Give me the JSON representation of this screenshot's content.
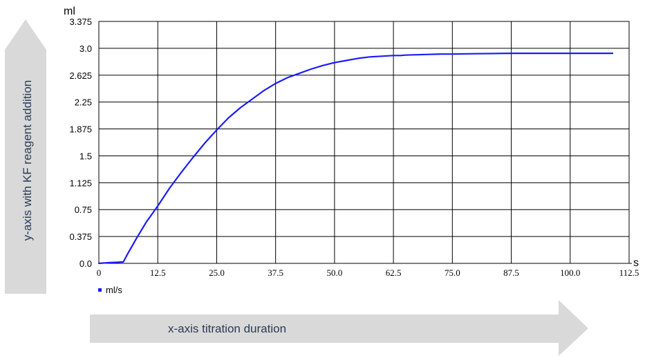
{
  "arrows": {
    "y_label": "y-axis with KF reagent addition",
    "x_label": "x-axis titration duration"
  },
  "chart_data": {
    "type": "line",
    "y_unit": "ml",
    "x_unit": "s",
    "xlim": [
      0,
      112.5
    ],
    "ylim": [
      0,
      3.375
    ],
    "x_ticks": [
      "0",
      "12.5",
      "25.0",
      "37.5",
      "50.0",
      "62.5",
      "75.0",
      "87.5",
      "100.0",
      "112.5"
    ],
    "y_ticks": [
      "0.0",
      "0.375",
      "0.75",
      "1.125",
      "1.5",
      "1.875",
      "2.25",
      "2.625",
      "3.0",
      "3.375"
    ],
    "grid": true,
    "legend": "bottom-left",
    "series": [
      {
        "name": "ml/s",
        "color": "#1a1aff",
        "x": [
          0,
          2,
          4,
          5.2,
          6,
          8,
          10,
          12.5,
          15,
          17.5,
          20,
          22.5,
          25,
          27.5,
          30,
          32.5,
          35,
          37.5,
          40,
          42.5,
          45,
          47.5,
          50,
          52.5,
          55,
          57.5,
          60,
          62.5,
          64,
          65,
          67.5,
          70,
          72.5,
          75,
          80,
          87.5,
          95,
          100,
          105,
          109
        ],
        "y": [
          0,
          0.01,
          0.015,
          0.02,
          0.12,
          0.35,
          0.57,
          0.8,
          1.05,
          1.27,
          1.48,
          1.68,
          1.86,
          2.03,
          2.17,
          2.29,
          2.41,
          2.51,
          2.59,
          2.65,
          2.71,
          2.76,
          2.8,
          2.83,
          2.86,
          2.88,
          2.89,
          2.9,
          2.9,
          2.905,
          2.91,
          2.915,
          2.92,
          2.92,
          2.925,
          2.93,
          2.93,
          2.93,
          2.93,
          2.93
        ]
      }
    ]
  }
}
